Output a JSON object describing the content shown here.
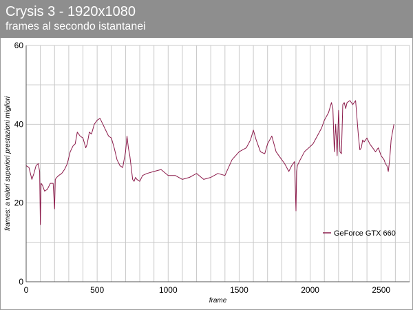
{
  "header": {
    "title": "Crysis 3 - 1920x1080",
    "subtitle": "frames al secondo istantanei"
  },
  "colors": {
    "header_bg": "#8e8e8e",
    "series": "#8b1a4a",
    "grid": "#c8c8c8"
  },
  "chart_data": {
    "type": "line",
    "title": "Crysis 3 - 1920x1080",
    "subtitle": "frames al secondo istantanei",
    "xlabel": "frame",
    "ylabel": "frames: a valori superiori prestazioni migliori",
    "xlim": [
      0,
      2700
    ],
    "ylim": [
      0,
      60
    ],
    "x_ticks": [
      0,
      500,
      1000,
      1500,
      2000,
      2500
    ],
    "y_ticks": [
      0,
      20,
      40,
      60
    ],
    "grid": true,
    "legend_position": "bottom-right",
    "series": [
      {
        "name": "GeForce GTX 660",
        "color": "#8b1a4a",
        "x": [
          0,
          20,
          40,
          55,
          70,
          85,
          95,
          100,
          105,
          115,
          130,
          150,
          170,
          190,
          200,
          205,
          215,
          230,
          250,
          270,
          290,
          310,
          330,
          345,
          360,
          380,
          400,
          420,
          430,
          445,
          460,
          480,
          500,
          520,
          540,
          560,
          580,
          600,
          620,
          640,
          660,
          680,
          690,
          700,
          710,
          720,
          730,
          750,
          760,
          770,
          780,
          800,
          820,
          850,
          900,
          950,
          1000,
          1050,
          1100,
          1150,
          1200,
          1250,
          1300,
          1350,
          1400,
          1450,
          1500,
          1550,
          1580,
          1600,
          1620,
          1650,
          1680,
          1700,
          1730,
          1760,
          1800,
          1820,
          1850,
          1870,
          1890,
          1900,
          1905,
          1910,
          1930,
          1960,
          1990,
          2020,
          2050,
          2080,
          2100,
          2130,
          2150,
          2160,
          2170,
          2180,
          2190,
          2200,
          2210,
          2220,
          2230,
          2240,
          2250,
          2260,
          2280,
          2300,
          2320,
          2340,
          2350,
          2360,
          2370,
          2380,
          2400,
          2420,
          2440,
          2460,
          2480,
          2500,
          2520,
          2530,
          2540,
          2550,
          2560,
          2570,
          2580,
          2590
        ],
        "values": [
          29.5,
          29,
          26,
          27.5,
          29.5,
          30,
          28,
          14.5,
          25,
          24.5,
          23,
          23.5,
          25,
          25,
          18.5,
          26,
          26.5,
          27,
          27.5,
          28.5,
          30,
          33,
          34.5,
          35,
          38,
          37,
          36.5,
          34,
          35,
          38,
          37.5,
          40,
          41,
          41.5,
          40,
          38.5,
          37,
          36.5,
          34,
          31,
          29.5,
          29,
          31,
          33,
          37,
          34,
          32,
          26,
          25.5,
          26.5,
          26,
          25.5,
          27,
          27.5,
          28,
          28.5,
          27,
          27,
          26,
          26.5,
          27.5,
          26,
          26.5,
          27.5,
          27,
          31,
          33,
          34,
          36,
          38.5,
          36,
          33,
          32.5,
          35,
          37,
          33,
          31,
          30,
          28,
          29.5,
          30.5,
          18,
          28,
          29.5,
          31,
          33,
          34,
          35,
          37,
          39,
          41,
          43,
          45.5,
          44,
          33,
          40,
          32,
          43.5,
          33,
          32.5,
          45,
          45.5,
          44,
          45.5,
          46,
          45,
          46,
          37,
          33.5,
          34,
          36,
          35.5,
          36.5,
          35,
          34,
          33,
          34,
          32,
          31,
          30,
          29.5,
          28,
          31,
          36,
          38,
          40
        ]
      }
    ]
  }
}
